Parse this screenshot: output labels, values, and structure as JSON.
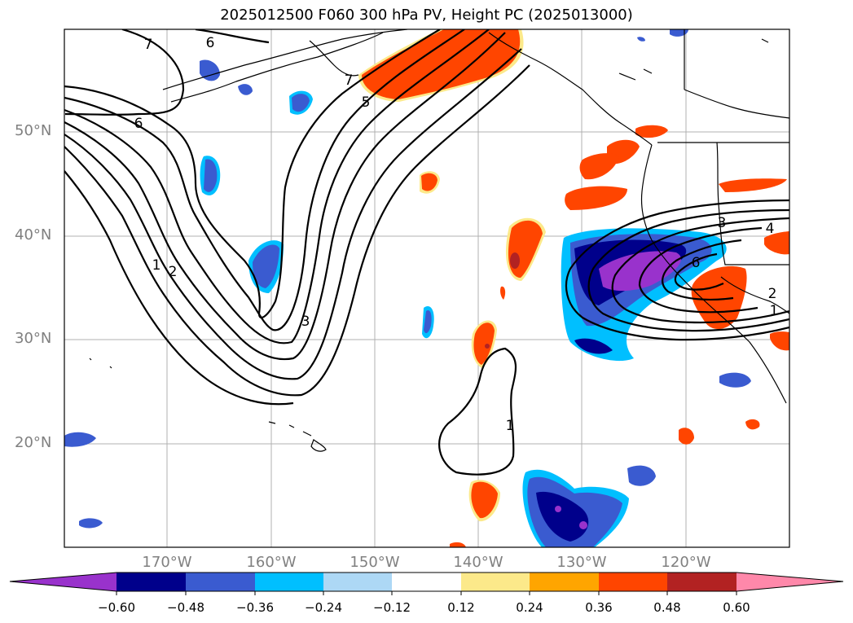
{
  "title": "2025012500 F060 300 hPa PV, Height PC (2025013000)",
  "map": {
    "lat_labels": [
      "50°N",
      "40°N",
      "30°N",
      "20°N"
    ],
    "lon_labels": [
      "170°W",
      "160°W",
      "150°W",
      "140°W",
      "130°W",
      "120°W"
    ],
    "contour_labels": [
      "7",
      "6",
      "6",
      "7",
      "5",
      "1",
      "2",
      "3",
      "1",
      "3",
      "6",
      "4",
      "2",
      "1"
    ]
  },
  "colorbar": {
    "ticks": [
      "−0.60",
      "−0.48",
      "−0.36",
      "−0.24",
      "−0.12",
      "0.12",
      "0.24",
      "0.36",
      "0.48",
      "0.60"
    ],
    "colors": [
      "#9932cc",
      "#00008b",
      "#3a5bd0",
      "#00bfff",
      "#add8f5",
      "#ffffff",
      "#fce98a",
      "#ffa500",
      "#ff4500",
      "#b22222",
      "#ff88aa"
    ]
  }
}
